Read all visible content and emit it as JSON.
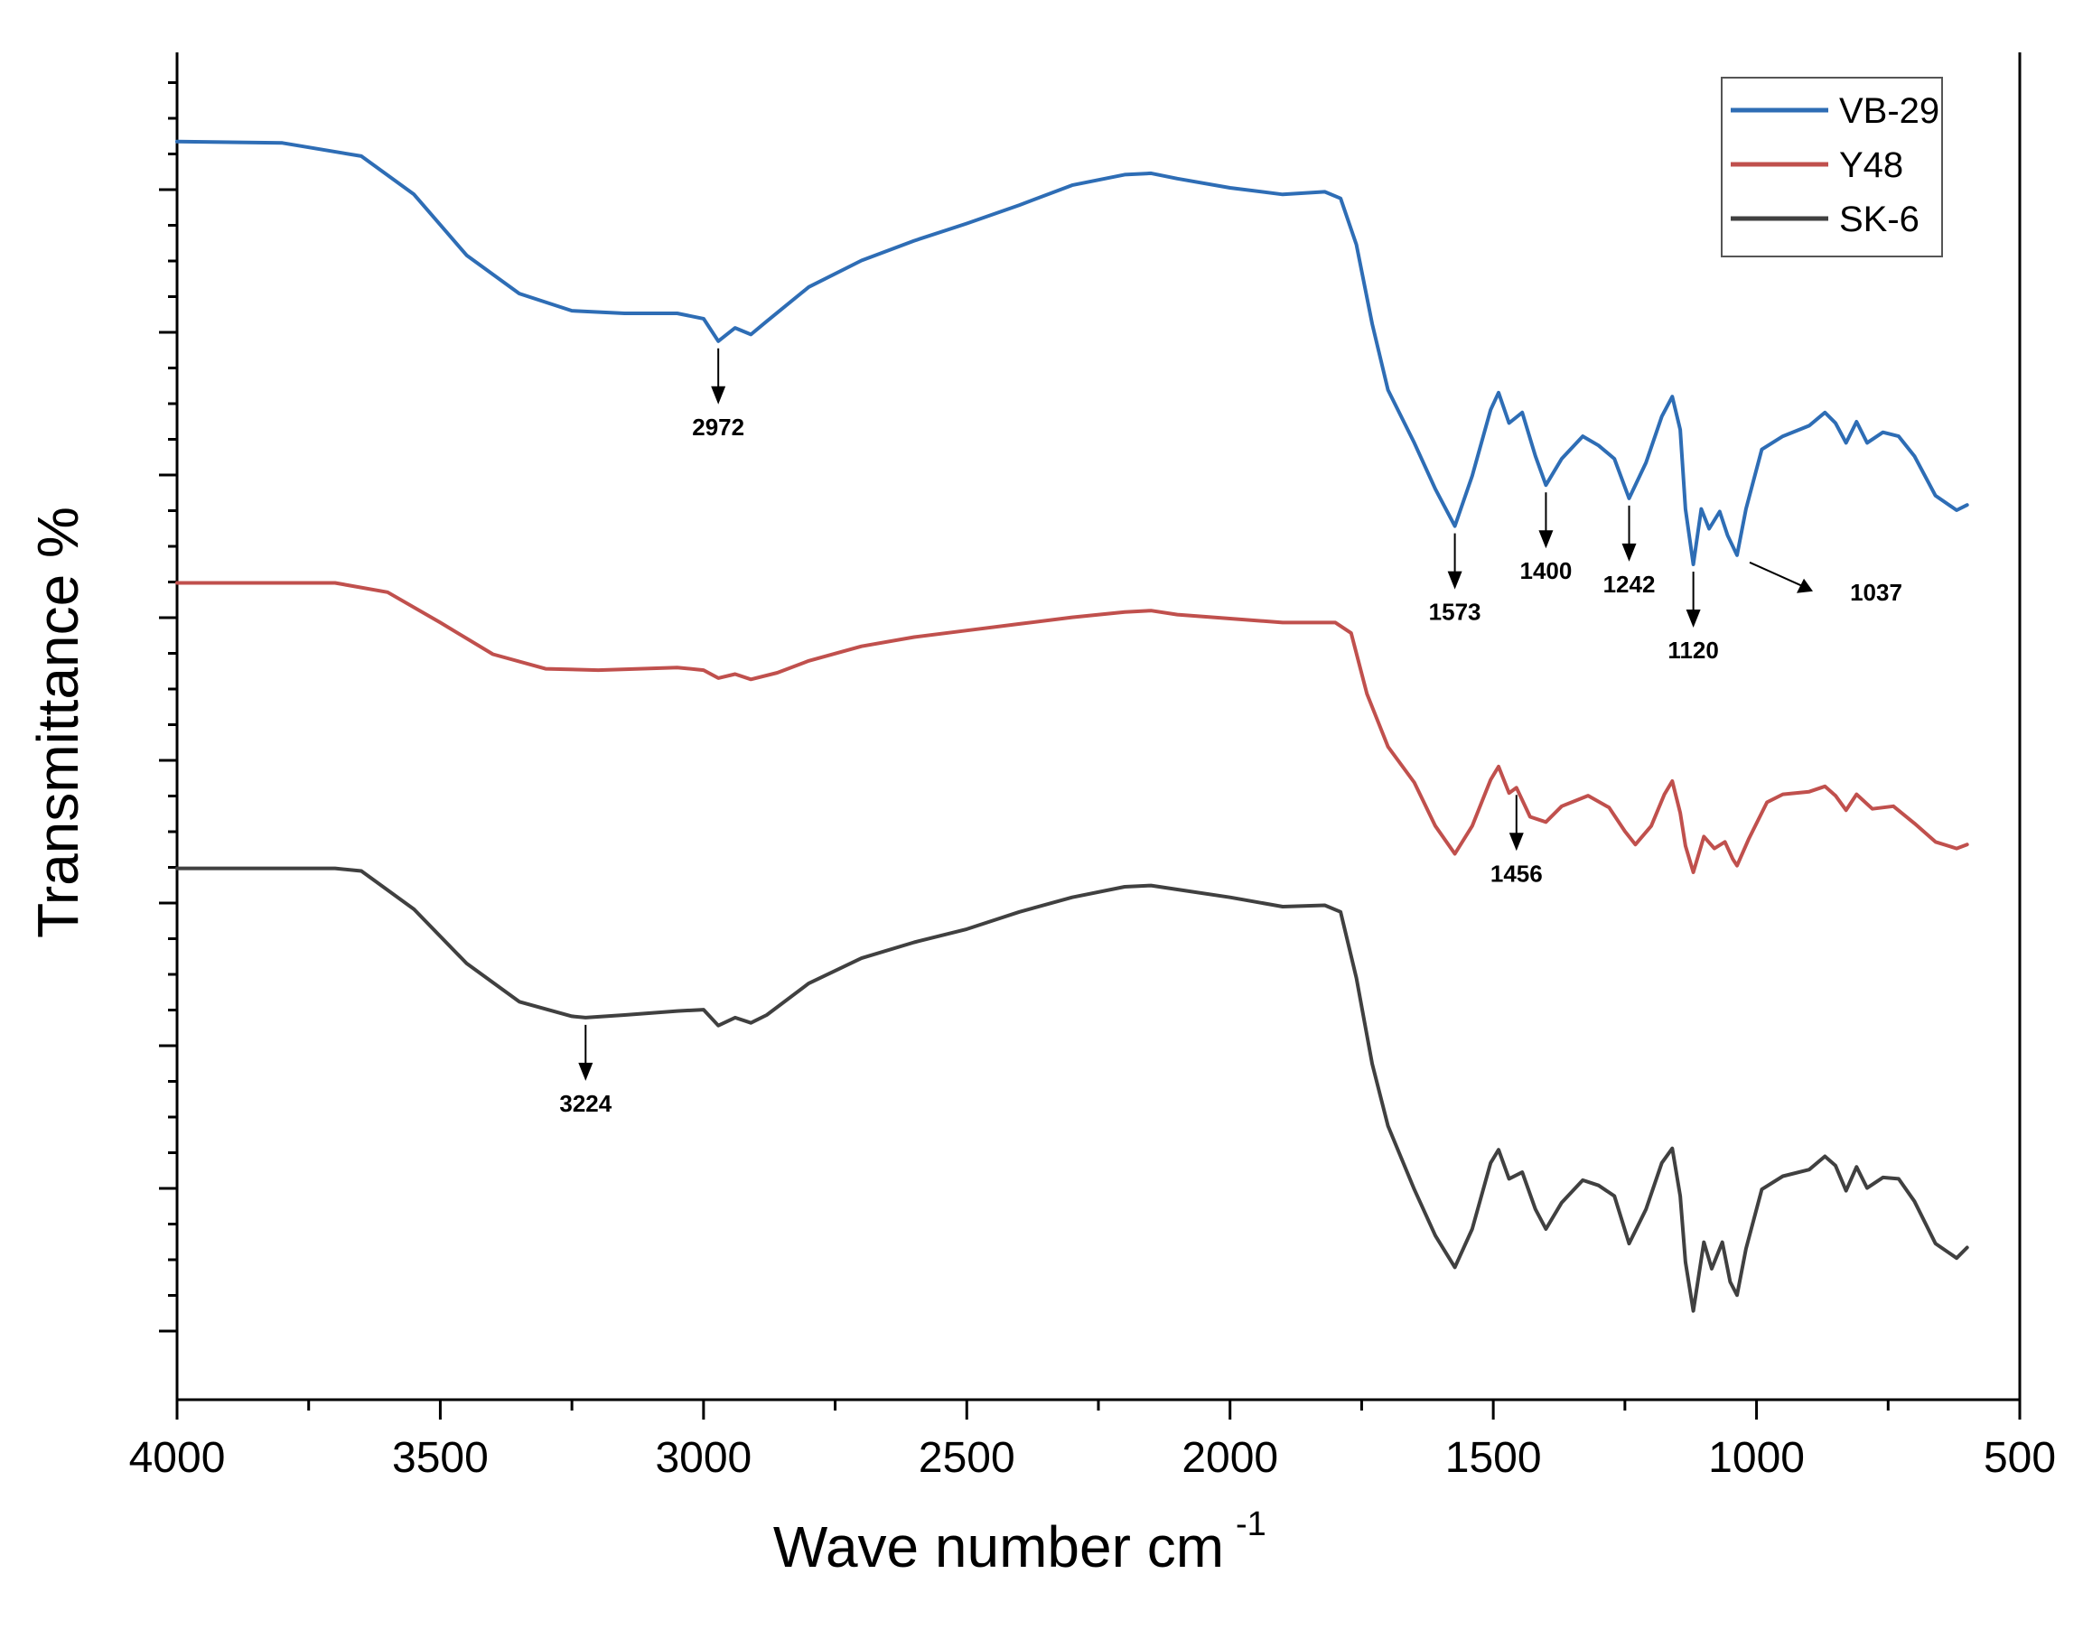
{
  "chart_data": {
    "type": "line",
    "title": "",
    "xlabel": "Wave number cm",
    "xlabel_superscript": "-1",
    "ylabel": "Transmittance %",
    "xlim": [
      4000,
      500
    ],
    "ylim": [
      0,
      100
    ],
    "x_ticks": [
      "4000",
      "3500",
      "3000",
      "2500",
      "2000",
      "1500",
      "1000",
      "500"
    ],
    "y_ticks_labeled": false,
    "legend_position": "top-right",
    "series": [
      {
        "name": "VB-29",
        "color": "#2e6db5",
        "points": [
          [
            4000,
            91.8
          ],
          [
            3800,
            91.7
          ],
          [
            3650,
            90.7
          ],
          [
            3550,
            87.8
          ],
          [
            3450,
            83.2
          ],
          [
            3350,
            80.3
          ],
          [
            3250,
            79.0
          ],
          [
            3150,
            78.8
          ],
          [
            3050,
            78.8
          ],
          [
            3000,
            78.4
          ],
          [
            2972,
            76.7
          ],
          [
            2940,
            77.7
          ],
          [
            2910,
            77.2
          ],
          [
            2880,
            78.2
          ],
          [
            2800,
            80.8
          ],
          [
            2700,
            82.8
          ],
          [
            2600,
            84.3
          ],
          [
            2500,
            85.6
          ],
          [
            2400,
            87.0
          ],
          [
            2300,
            88.5
          ],
          [
            2200,
            89.3
          ],
          [
            2150,
            89.4
          ],
          [
            2100,
            89.0
          ],
          [
            2000,
            88.3
          ],
          [
            1900,
            87.8
          ],
          [
            1820,
            88.0
          ],
          [
            1790,
            87.5
          ],
          [
            1760,
            84.0
          ],
          [
            1730,
            78.0
          ],
          [
            1700,
            73.0
          ],
          [
            1650,
            69.0
          ],
          [
            1610,
            65.5
          ],
          [
            1573,
            62.7
          ],
          [
            1540,
            66.5
          ],
          [
            1505,
            71.5
          ],
          [
            1490,
            72.8
          ],
          [
            1470,
            70.5
          ],
          [
            1445,
            71.3
          ],
          [
            1420,
            68.0
          ],
          [
            1400,
            65.8
          ],
          [
            1370,
            67.8
          ],
          [
            1330,
            69.5
          ],
          [
            1300,
            68.8
          ],
          [
            1270,
            67.8
          ],
          [
            1242,
            64.8
          ],
          [
            1210,
            67.5
          ],
          [
            1180,
            71.0
          ],
          [
            1160,
            72.5
          ],
          [
            1145,
            70.0
          ],
          [
            1135,
            64.0
          ],
          [
            1120,
            59.8
          ],
          [
            1105,
            64.0
          ],
          [
            1090,
            62.5
          ],
          [
            1070,
            63.8
          ],
          [
            1055,
            62.0
          ],
          [
            1037,
            60.5
          ],
          [
            1020,
            64.0
          ],
          [
            990,
            68.5
          ],
          [
            950,
            69.5
          ],
          [
            900,
            70.3
          ],
          [
            870,
            71.3
          ],
          [
            850,
            70.5
          ],
          [
            830,
            69.0
          ],
          [
            810,
            70.6
          ],
          [
            790,
            69.0
          ],
          [
            760,
            69.8
          ],
          [
            730,
            69.5
          ],
          [
            700,
            68.0
          ],
          [
            660,
            65.0
          ],
          [
            620,
            63.9
          ],
          [
            600,
            64.3
          ]
        ]
      },
      {
        "name": "Y48",
        "color": "#c0504d",
        "points": [
          [
            4000,
            58.4
          ],
          [
            3700,
            58.4
          ],
          [
            3600,
            57.7
          ],
          [
            3500,
            55.4
          ],
          [
            3400,
            53.0
          ],
          [
            3300,
            51.9
          ],
          [
            3200,
            51.8
          ],
          [
            3050,
            52.0
          ],
          [
            3000,
            51.8
          ],
          [
            2972,
            51.2
          ],
          [
            2940,
            51.5
          ],
          [
            2910,
            51.1
          ],
          [
            2860,
            51.6
          ],
          [
            2800,
            52.5
          ],
          [
            2700,
            53.6
          ],
          [
            2600,
            54.3
          ],
          [
            2500,
            54.8
          ],
          [
            2400,
            55.3
          ],
          [
            2300,
            55.8
          ],
          [
            2200,
            56.2
          ],
          [
            2150,
            56.3
          ],
          [
            2100,
            56.0
          ],
          [
            2000,
            55.7
          ],
          [
            1900,
            55.4
          ],
          [
            1800,
            55.4
          ],
          [
            1770,
            54.6
          ],
          [
            1740,
            50.0
          ],
          [
            1700,
            46.0
          ],
          [
            1650,
            43.3
          ],
          [
            1610,
            40.0
          ],
          [
            1573,
            37.9
          ],
          [
            1540,
            40.0
          ],
          [
            1505,
            43.5
          ],
          [
            1490,
            44.5
          ],
          [
            1470,
            42.5
          ],
          [
            1456,
            42.9
          ],
          [
            1430,
            40.7
          ],
          [
            1400,
            40.3
          ],
          [
            1370,
            41.5
          ],
          [
            1320,
            42.3
          ],
          [
            1280,
            41.4
          ],
          [
            1250,
            39.6
          ],
          [
            1230,
            38.6
          ],
          [
            1200,
            40.0
          ],
          [
            1175,
            42.4
          ],
          [
            1160,
            43.4
          ],
          [
            1145,
            41.0
          ],
          [
            1135,
            38.5
          ],
          [
            1120,
            36.5
          ],
          [
            1100,
            39.2
          ],
          [
            1080,
            38.3
          ],
          [
            1060,
            38.8
          ],
          [
            1045,
            37.5
          ],
          [
            1037,
            37.0
          ],
          [
            1015,
            39.0
          ],
          [
            980,
            41.8
          ],
          [
            950,
            42.4
          ],
          [
            900,
            42.6
          ],
          [
            870,
            43.0
          ],
          [
            850,
            42.3
          ],
          [
            830,
            41.2
          ],
          [
            810,
            42.4
          ],
          [
            780,
            41.3
          ],
          [
            740,
            41.5
          ],
          [
            700,
            40.2
          ],
          [
            660,
            38.8
          ],
          [
            620,
            38.3
          ],
          [
            600,
            38.6
          ]
        ]
      },
      {
        "name": "SK-6",
        "color": "#404040",
        "points": [
          [
            4000,
            36.8
          ],
          [
            3700,
            36.8
          ],
          [
            3650,
            36.6
          ],
          [
            3550,
            33.7
          ],
          [
            3450,
            29.6
          ],
          [
            3350,
            26.7
          ],
          [
            3250,
            25.6
          ],
          [
            3224,
            25.5
          ],
          [
            3150,
            25.7
          ],
          [
            3050,
            26.0
          ],
          [
            3000,
            26.1
          ],
          [
            2972,
            24.9
          ],
          [
            2940,
            25.5
          ],
          [
            2910,
            25.1
          ],
          [
            2880,
            25.7
          ],
          [
            2800,
            28.1
          ],
          [
            2700,
            30.0
          ],
          [
            2600,
            31.2
          ],
          [
            2500,
            32.2
          ],
          [
            2400,
            33.5
          ],
          [
            2300,
            34.6
          ],
          [
            2200,
            35.4
          ],
          [
            2150,
            35.5
          ],
          [
            2100,
            35.2
          ],
          [
            2000,
            34.6
          ],
          [
            1900,
            33.9
          ],
          [
            1820,
            34.0
          ],
          [
            1790,
            33.5
          ],
          [
            1760,
            28.5
          ],
          [
            1730,
            22.0
          ],
          [
            1700,
            17.3
          ],
          [
            1650,
            12.5
          ],
          [
            1610,
            9.0
          ],
          [
            1573,
            6.6
          ],
          [
            1540,
            9.5
          ],
          [
            1505,
            14.5
          ],
          [
            1490,
            15.5
          ],
          [
            1470,
            13.3
          ],
          [
            1445,
            13.8
          ],
          [
            1420,
            11.0
          ],
          [
            1400,
            9.5
          ],
          [
            1370,
            11.5
          ],
          [
            1330,
            13.2
          ],
          [
            1300,
            12.8
          ],
          [
            1270,
            12.0
          ],
          [
            1242,
            8.4
          ],
          [
            1210,
            11.0
          ],
          [
            1180,
            14.5
          ],
          [
            1160,
            15.6
          ],
          [
            1145,
            12.0
          ],
          [
            1135,
            7.0
          ],
          [
            1120,
            3.3
          ],
          [
            1100,
            8.5
          ],
          [
            1085,
            6.5
          ],
          [
            1065,
            8.5
          ],
          [
            1050,
            5.5
          ],
          [
            1037,
            4.5
          ],
          [
            1020,
            8.0
          ],
          [
            990,
            12.5
          ],
          [
            950,
            13.5
          ],
          [
            900,
            14.0
          ],
          [
            870,
            15.0
          ],
          [
            850,
            14.3
          ],
          [
            830,
            12.4
          ],
          [
            810,
            14.2
          ],
          [
            790,
            12.6
          ],
          [
            760,
            13.4
          ],
          [
            730,
            13.3
          ],
          [
            700,
            11.6
          ],
          [
            660,
            8.4
          ],
          [
            620,
            7.3
          ],
          [
            600,
            8.1
          ]
        ]
      }
    ],
    "annotations": [
      {
        "label": "2972",
        "series": "VB-29",
        "x": 2972
      },
      {
        "label": "1573",
        "series": "VB-29",
        "x": 1573
      },
      {
        "label": "1400",
        "series": "VB-29",
        "x": 1400
      },
      {
        "label": "1242",
        "series": "VB-29",
        "x": 1242
      },
      {
        "label": "1120",
        "series": "VB-29",
        "x": 1120
      },
      {
        "label": "1037",
        "series": "VB-29",
        "x": 1037
      },
      {
        "label": "1456",
        "series": "Y48",
        "x": 1456
      },
      {
        "label": "3224",
        "series": "SK-6",
        "x": 3224
      }
    ]
  }
}
